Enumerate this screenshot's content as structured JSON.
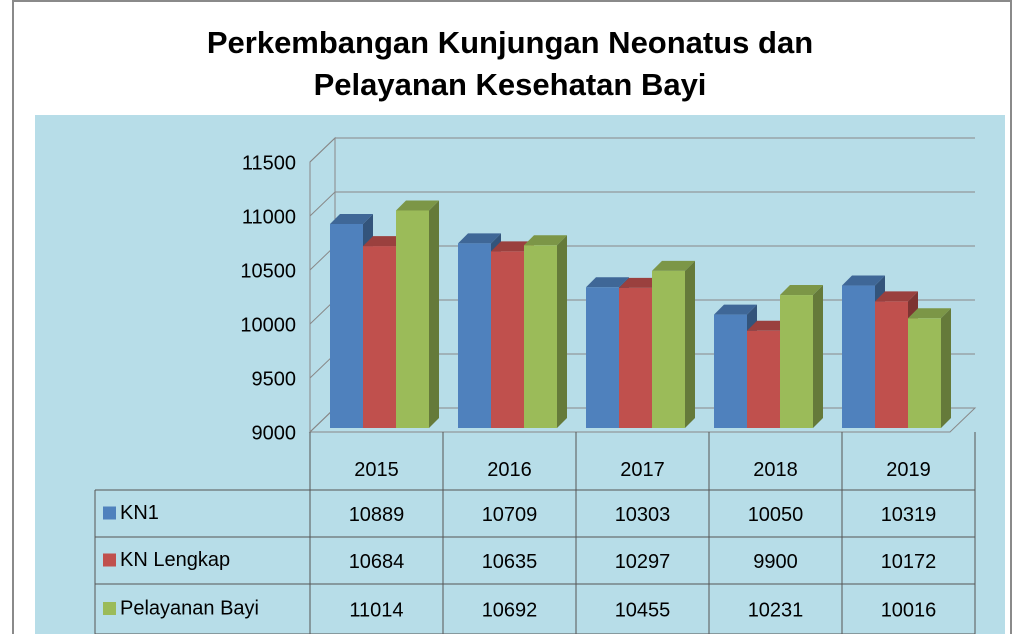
{
  "chart_data": {
    "type": "bar3d",
    "title": "Perkembangan Kunjungan Neonatus dan Pelayanan Kesehatan Bayi",
    "categories": [
      "2015",
      "2016",
      "2017",
      "2018",
      "2019"
    ],
    "series": [
      {
        "name": "KN1",
        "color": "#4f81bd",
        "values": [
          10889,
          10709,
          10303,
          10050,
          10319
        ]
      },
      {
        "name": "KN Lengkap",
        "color": "#c0504d",
        "values": [
          10684,
          10635,
          10297,
          9900,
          10172
        ]
      },
      {
        "name": "Pelayanan Bayi",
        "color": "#9bbb59",
        "values": [
          11014,
          10692,
          10455,
          10231,
          10016
        ]
      }
    ],
    "ylim": [
      9000,
      11500
    ],
    "yticks": [
      9000,
      9500,
      10000,
      10500,
      11000,
      11500
    ],
    "grid": true
  }
}
